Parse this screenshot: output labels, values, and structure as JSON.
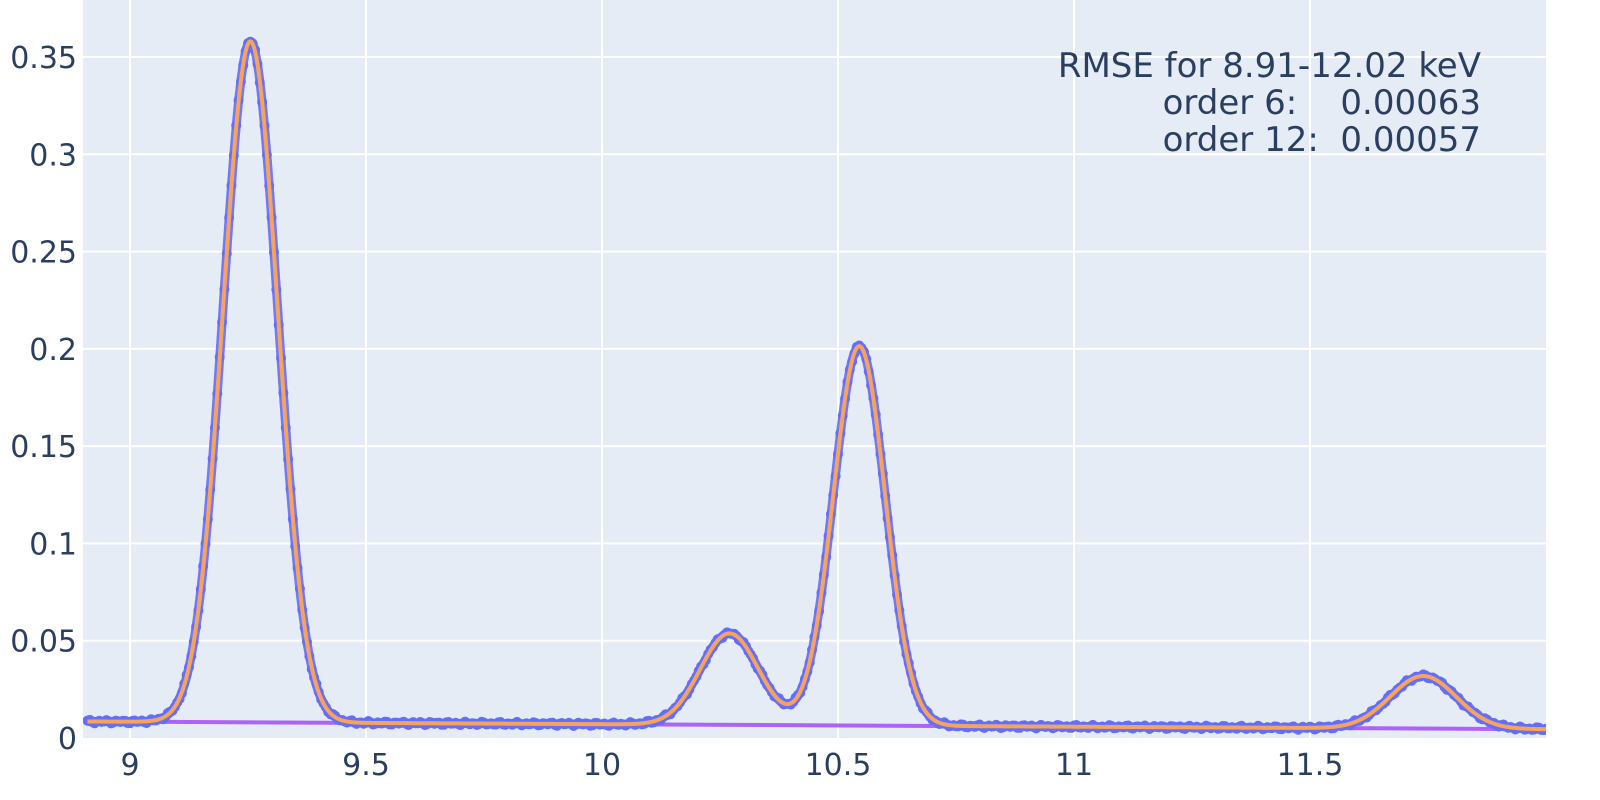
{
  "chart_data": {
    "type": "scatter",
    "title": "",
    "xlabel": "",
    "ylabel": "",
    "xlim": [
      8.91,
      12.02
    ],
    "ylim": [
      0,
      0.37
    ],
    "x_ticks": [
      9,
      9.5,
      10,
      10.5,
      11,
      11.5
    ],
    "x_tick_labels": [
      "9",
      "9.5",
      "10",
      "10.5",
      "11",
      "11.5"
    ],
    "y_ticks": [
      0,
      0.05,
      0.1,
      0.15,
      0.2,
      0.25,
      0.3,
      0.35
    ],
    "y_tick_labels": [
      "0",
      "0.05",
      "0.1",
      "0.15",
      "0.2",
      "0.25",
      "0.3",
      "0.35"
    ],
    "grid": true,
    "legend": "none",
    "colors": {
      "plot_bg": "#e5ecf6",
      "grid": "#ffffff",
      "measured": "#636efa",
      "fit": "#f7a35c",
      "baseline": "#ab63fa"
    },
    "baseline": {
      "x": [
        8.91,
        12.02
      ],
      "y": [
        0.0085,
        0.0045
      ]
    },
    "peaks": [
      {
        "center": 9.255,
        "height": 0.35,
        "sigma": 0.058
      },
      {
        "center": 10.27,
        "height": 0.047,
        "sigma": 0.062
      },
      {
        "center": 10.545,
        "height": 0.195,
        "sigma": 0.055
      },
      {
        "center": 11.74,
        "height": 0.027,
        "sigma": 0.07
      }
    ],
    "series": [
      {
        "style": "markers",
        "x_start": 8.91,
        "x_end": 12.02,
        "x_step": 0.005
      },
      {
        "style": "line"
      },
      {
        "style": "line"
      }
    ],
    "annotation": {
      "lines": [
        "RMSE for 8.91-12.02 keV",
        "order 6:    0.00063",
        "order 12:  0.00057"
      ]
    }
  }
}
